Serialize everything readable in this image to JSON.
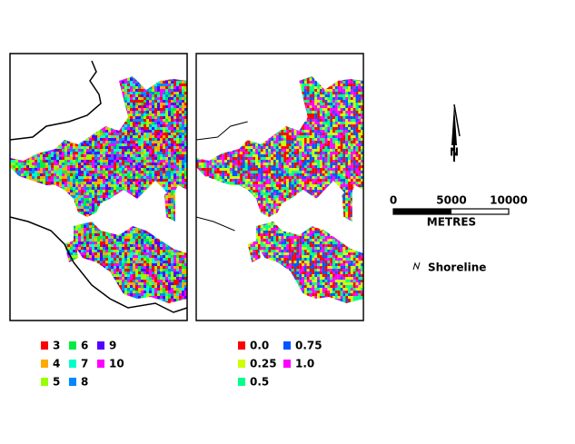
{
  "left_legend": {
    "items": [
      {
        "label": "3",
        "color": "#ff0000"
      },
      {
        "label": "4",
        "color": "#ffaa00"
      },
      {
        "label": "5",
        "color": "#99ff00"
      },
      {
        "label": "6",
        "color": "#00ee44"
      },
      {
        "label": "7",
        "color": "#00ffcc"
      },
      {
        "label": "8",
        "color": "#0088ff"
      },
      {
        "label": "9",
        "color": "#5500ff"
      },
      {
        "label": "10",
        "color": "#ff00ff"
      }
    ]
  },
  "right_legend": {
    "items": [
      {
        "label": "0.0",
        "color": "#ff0000"
      },
      {
        "label": "0.25",
        "color": "#ccff00"
      },
      {
        "label": "0.5",
        "color": "#00ff88"
      },
      {
        "label": "0.75",
        "color": "#0055ff"
      },
      {
        "label": "1.0",
        "color": "#ff00ff"
      }
    ]
  },
  "scale_bar": {
    "ticks": [
      "0",
      "5000",
      "10000"
    ],
    "unit": "METRES"
  },
  "north_arrow": {
    "label": "N"
  },
  "shoreline_legend": {
    "label": "Shoreline"
  }
}
